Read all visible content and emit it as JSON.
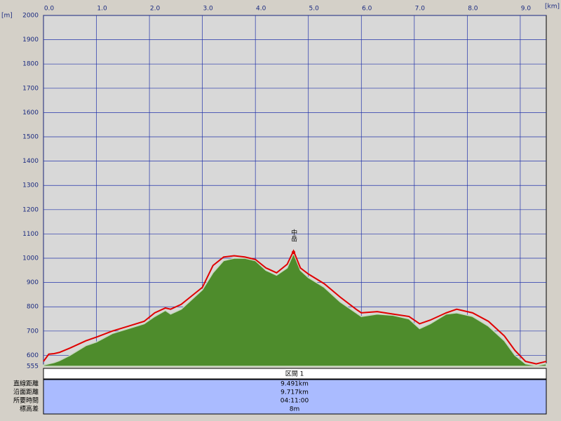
{
  "chart_data": {
    "type": "area",
    "x_unit": "[km]",
    "y_unit": "[m]",
    "annotation": {
      "text": "中岳",
      "x": 4.72,
      "y": 1030
    },
    "x": [
      0,
      0.1,
      0.2,
      0.3,
      0.5,
      0.8,
      1.0,
      1.3,
      1.6,
      1.9,
      2.1,
      2.3,
      2.4,
      2.6,
      2.8,
      3.0,
      3.2,
      3.4,
      3.6,
      3.8,
      4.0,
      4.2,
      4.4,
      4.6,
      4.72,
      4.85,
      5.0,
      5.3,
      5.6,
      5.9,
      6.0,
      6.3,
      6.6,
      6.9,
      7.1,
      7.3,
      7.6,
      7.8,
      8.1,
      8.4,
      8.7,
      8.9,
      9.1,
      9.3,
      9.491
    ],
    "series": [
      {
        "kind": "area",
        "color": "#4e8c2c",
        "values": [
          560,
          565,
          570,
          578,
          600,
          640,
          655,
          690,
          710,
          730,
          760,
          785,
          770,
          790,
          830,
          870,
          940,
          990,
          1000,
          1000,
          990,
          950,
          930,
          960,
          1020,
          950,
          920,
          880,
          820,
          775,
          760,
          770,
          765,
          750,
          710,
          730,
          770,
          775,
          760,
          720,
          660,
          600,
          565,
          558,
          565
        ]
      },
      {
        "kind": "line",
        "color": "#e00000",
        "values": [
          575,
          605,
          607,
          612,
          630,
          660,
          675,
          700,
          720,
          740,
          775,
          795,
          790,
          810,
          845,
          880,
          970,
          1005,
          1010,
          1005,
          995,
          960,
          940,
          975,
          1030,
          960,
          935,
          895,
          840,
          790,
          775,
          780,
          770,
          760,
          730,
          745,
          775,
          790,
          775,
          740,
          680,
          620,
          575,
          565,
          575
        ]
      }
    ],
    "xlim": [
      0,
      9.491
    ],
    "ylim": [
      555,
      2000
    ],
    "xticks": [
      {
        "value": 0,
        "label": "0.0"
      },
      {
        "value": 1,
        "label": "1.0"
      },
      {
        "value": 2,
        "label": "2.0"
      },
      {
        "value": 3,
        "label": "3.0"
      },
      {
        "value": 4,
        "label": "4.0"
      },
      {
        "value": 5,
        "label": "5.0"
      },
      {
        "value": 6,
        "label": "6.0"
      },
      {
        "value": 7,
        "label": "7.0"
      },
      {
        "value": 8,
        "label": "8.0"
      },
      {
        "value": 9,
        "label": "9.0"
      }
    ],
    "yticks": [
      555,
      600,
      700,
      800,
      900,
      1000,
      1100,
      1200,
      1300,
      1400,
      1500,
      1600,
      1700,
      1800,
      1900,
      2000
    ],
    "grid": true,
    "grid_color": "#2233aa"
  },
  "summary": {
    "header": "区間 1",
    "rows": [
      {
        "label": "直線距離",
        "value": "9.491km"
      },
      {
        "label": "沿面距離",
        "value": "9.717km"
      },
      {
        "label": "所要時間",
        "value": "04:11:00"
      },
      {
        "label": "標高差",
        "value": "8m"
      }
    ]
  }
}
